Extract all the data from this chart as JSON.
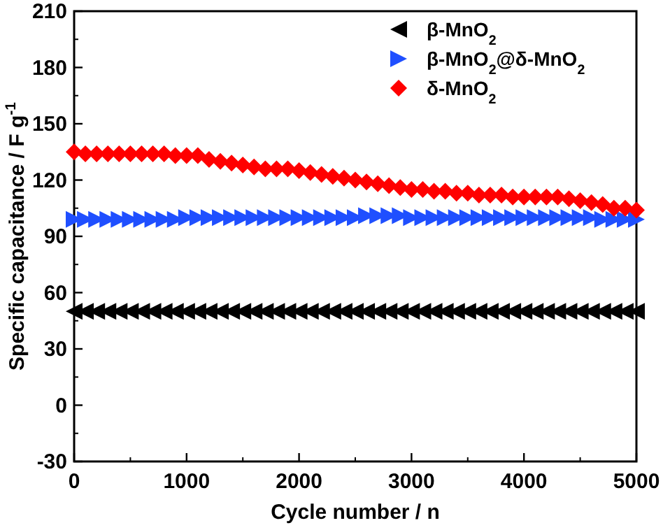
{
  "chart_data": {
    "type": "scatter",
    "xlabel": "Cycle number / n",
    "ylabel": "Specific capacitance / F g$^{-1}$",
    "x": [
      0,
      100,
      200,
      300,
      400,
      500,
      600,
      700,
      800,
      900,
      1000,
      1100,
      1200,
      1300,
      1400,
      1500,
      1600,
      1700,
      1800,
      1900,
      2000,
      2100,
      2200,
      2300,
      2400,
      2500,
      2600,
      2700,
      2800,
      2900,
      3000,
      3100,
      3200,
      3300,
      3400,
      3500,
      3600,
      3700,
      3800,
      3900,
      4000,
      4100,
      4200,
      4300,
      4400,
      4500,
      4600,
      4700,
      4800,
      4900,
      5000
    ],
    "series": [
      {
        "name": "β-MnO$_{2}$",
        "color": "#000000",
        "marker": "triangle-left",
        "values": [
          50,
          50,
          50,
          50,
          50,
          50,
          50,
          50,
          50,
          50,
          50,
          50,
          50,
          50,
          50,
          50,
          50,
          50,
          50,
          50,
          50,
          50,
          50,
          50,
          50,
          50,
          50,
          50,
          50,
          50,
          50,
          50,
          50,
          50,
          50,
          50,
          50,
          50,
          50,
          50,
          50,
          50,
          50,
          50,
          50,
          50,
          50,
          50,
          50,
          50,
          50
        ]
      },
      {
        "name": "β-MnO$_{2}$@δ-MnO$_{2}$",
        "color": "#1f4fff",
        "marker": "triangle-right",
        "values": [
          99,
          99,
          99,
          99,
          99,
          99,
          99,
          99,
          99,
          99,
          100,
          100,
          100,
          100,
          100,
          100,
          100,
          100,
          100,
          100,
          100,
          100,
          100,
          100,
          100,
          100,
          101,
          101,
          101,
          101,
          100,
          100,
          100,
          100,
          100,
          100,
          100,
          100,
          100,
          100,
          100,
          100,
          100,
          100,
          100,
          100,
          100,
          99,
          99,
          99,
          99
        ]
      },
      {
        "name": "δ-MnO$_{2}$",
        "color": "#ff0000",
        "marker": "diamond",
        "values": [
          135,
          134,
          134,
          134,
          134,
          134,
          134,
          134,
          134,
          133,
          133,
          133,
          131,
          130,
          129,
          128,
          127,
          126,
          126,
          126,
          125,
          124,
          123,
          122,
          121,
          120,
          119,
          118,
          117,
          116,
          115,
          115,
          114,
          114,
          113,
          113,
          112,
          112,
          112,
          111,
          111,
          111,
          111,
          111,
          110,
          109,
          108,
          107,
          105,
          105,
          104
        ]
      }
    ],
    "xlim": [
      0,
      5000
    ],
    "xticks": [
      0,
      1000,
      2000,
      3000,
      4000,
      5000
    ],
    "ylim": [
      -30,
      210
    ],
    "yticks": [
      -30,
      0,
      30,
      60,
      90,
      120,
      150,
      180,
      210
    ],
    "legend": "top right"
  }
}
